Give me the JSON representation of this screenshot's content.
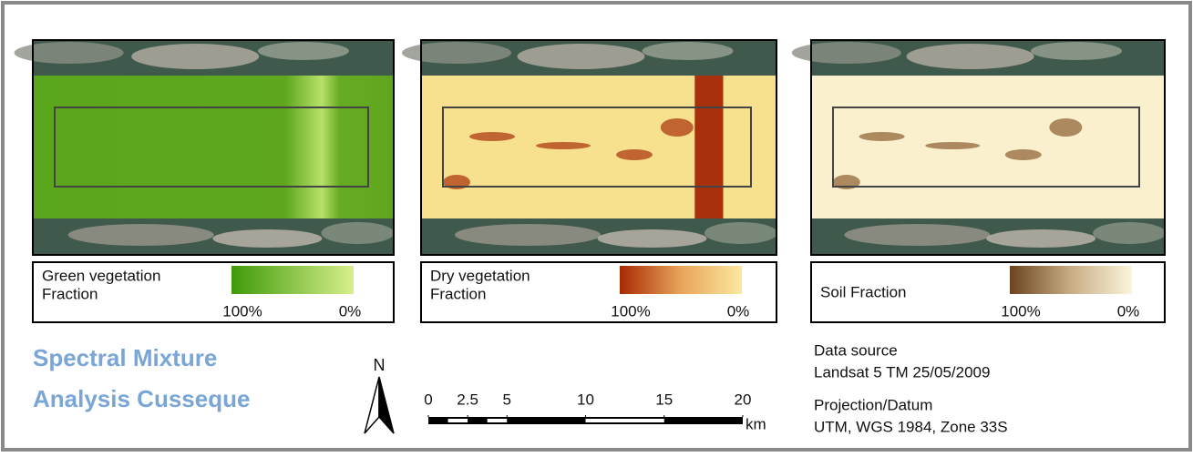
{
  "panels": [
    {
      "legend": {
        "title": [
          "Green vegetation",
          "Fraction"
        ],
        "high_label": "100%",
        "low_label": "0%"
      }
    },
    {
      "legend": {
        "title": [
          "Dry vegetation",
          "Fraction"
        ],
        "high_label": "100%",
        "low_label": "0%"
      }
    },
    {
      "legend": {
        "title": [
          "Soil Fraction"
        ],
        "high_label": "100%",
        "low_label": "0%"
      }
    }
  ],
  "title": [
    "Spectral Mixture",
    "Analysis Cusseque"
  ],
  "north_arrow": "N",
  "scale_bar": {
    "ticks": [
      0,
      2.5,
      5,
      10,
      15,
      20
    ],
    "unit": "km"
  },
  "info": {
    "source_heading": "Data source",
    "source": "Landsat 5 TM 25/05/2009",
    "projection_heading": "Projection/Datum",
    "projection": "UTM, WGS 1984, Zone 33S"
  }
}
